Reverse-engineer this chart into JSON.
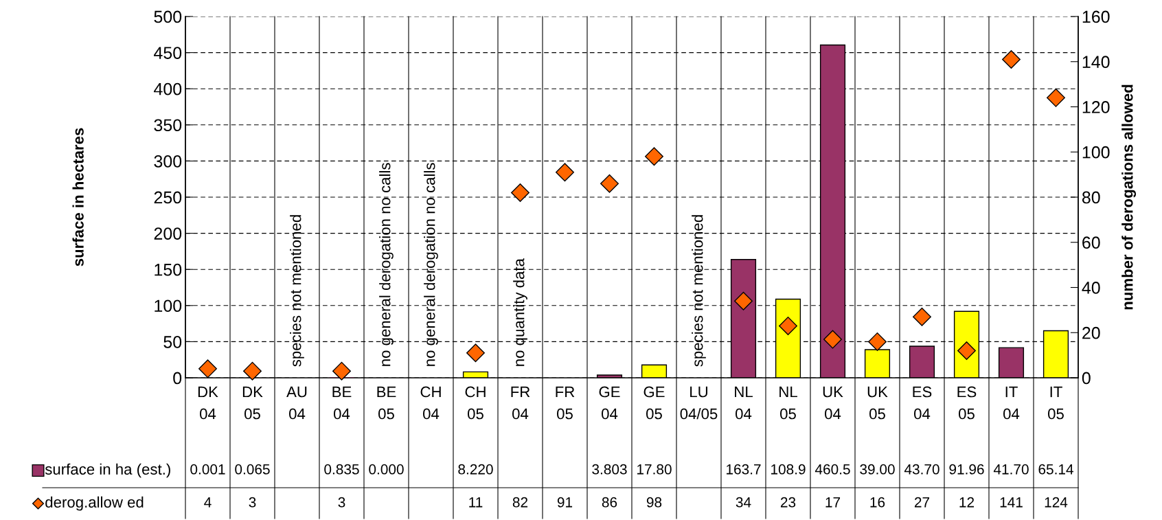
{
  "chart_data": {
    "type": "bar",
    "categories": [
      "DK 04",
      "DK 05",
      "AU 04",
      "BE 04",
      "BE 05",
      "CH 04",
      "CH 05",
      "FR 04",
      "FR 05",
      "GE 04",
      "GE 05",
      "LU 04/05",
      "NL 04",
      "NL 05",
      "UK 04",
      "UK 05",
      "ES 04",
      "ES 05",
      "IT 04",
      "IT 05"
    ],
    "series": [
      {
        "name": "surface in ha (est.)",
        "color": "#993366",
        "colors": [
          "#993366",
          "#ffff00",
          "#993366",
          "#993366",
          "#ffff00",
          "#993366",
          "#ffff00",
          "#993366",
          "#ffff00",
          "#993366",
          "#ffff00",
          "#993366",
          "#993366",
          "#ffff00",
          "#993366",
          "#ffff00",
          "#993366",
          "#ffff00",
          "#993366",
          "#ffff00"
        ],
        "values": [
          0.001,
          0.065,
          null,
          0.835,
          0,
          null,
          8.22,
          null,
          null,
          3.803,
          17.8,
          null,
          163.7,
          108.9,
          460.5,
          39.0,
          43.7,
          91.96,
          41.7,
          65.14
        ],
        "value_labels": [
          "0.001",
          "0.065",
          null,
          "0.835",
          "0.000",
          null,
          "8.220",
          null,
          null,
          "3.803",
          "17.80",
          null,
          "163.7",
          "108.9",
          "460.5",
          "39.00",
          "43.70",
          "91.96",
          "41.70",
          "65.14"
        ]
      },
      {
        "name": "derog.allow ed",
        "type": "scatter",
        "axis": "y2",
        "color": "#ff6600",
        "marker": "diamond",
        "values": [
          4,
          3,
          null,
          3,
          null,
          null,
          11,
          82,
          91,
          86,
          98,
          null,
          34,
          23,
          17,
          16,
          27,
          12,
          141,
          124
        ],
        "value_labels": [
          "4",
          "3",
          null,
          "3",
          null,
          null,
          "11",
          "82",
          "91",
          "86",
          "98",
          null,
          "34",
          "23",
          "17",
          "16",
          "27",
          "12",
          "141",
          "124"
        ]
      }
    ],
    "ylabel": "surface in hectares",
    "y2label": "number of derogations allowed",
    "ylim": [
      0,
      500
    ],
    "yticks": [
      0,
      50,
      100,
      150,
      200,
      250,
      300,
      350,
      400,
      450,
      500
    ],
    "y2lim": [
      0,
      160
    ],
    "y2ticks": [
      0,
      20,
      40,
      60,
      80,
      100,
      120,
      140,
      160
    ],
    "grid": "y",
    "legend": "bottom left",
    "annotations": [
      "species not mentioned",
      "no general derogation no calls",
      "no general derogation no calls",
      "species not mentioned",
      "no quantity data"
    ]
  }
}
